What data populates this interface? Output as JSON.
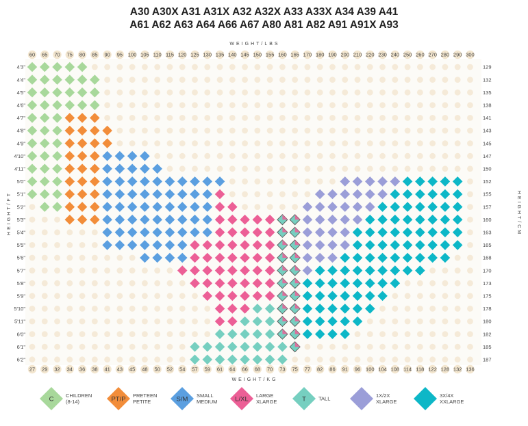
{
  "title": {
    "line1": "A30 A30X A31 A31X A32 A32X A33 A33X A34 A39 A41",
    "line2": "A61 A62 A63 A64 A66 A67 A80 A81 A82 A91 A91X A93"
  },
  "chart_data": {
    "type": "heatmap",
    "xlabel_top": "WEIGHT/LBS",
    "xlabel_bottom": "WEIGHT/KG",
    "ylabel_left": "HEIGHT/FT",
    "ylabel_right": "HEIGHT/CM",
    "lbs_ticks": [
      "60",
      "65",
      "70",
      "75",
      "80",
      "85",
      "90",
      "95",
      "100",
      "105",
      "110",
      "115",
      "120",
      "125",
      "130",
      "135",
      "140",
      "145",
      "150",
      "155",
      "160",
      "165",
      "170",
      "180",
      "190",
      "200",
      "210",
      "220",
      "230",
      "240",
      "250",
      "260",
      "270",
      "280",
      "290",
      "300"
    ],
    "kg_ticks": [
      "27",
      "29",
      "32",
      "34",
      "36",
      "38",
      "41",
      "43",
      "45",
      "48",
      "50",
      "52",
      "54",
      "57",
      "59",
      "61",
      "64",
      "66",
      "68",
      "70",
      "73",
      "75",
      "77",
      "82",
      "86",
      "91",
      "96",
      "100",
      "104",
      "108",
      "114",
      "118",
      "122",
      "128",
      "132",
      "136"
    ],
    "ft_ticks": [
      "4'3\"",
      "4'4\"",
      "4'5\"",
      "4'6\"",
      "4'7\"",
      "4'8\"",
      "4'9\"",
      "4'10\"",
      "4'11\"",
      "5'0\"",
      "5'1\"",
      "5'2\"",
      "5'3\"",
      "5'4\"",
      "5'5\"",
      "5'6\"",
      "5'7\"",
      "5'8\"",
      "5'9\"",
      "5'10\"",
      "5'11\"",
      "6'0\"",
      "6'1\"",
      "6'2\""
    ],
    "cm_ticks": [
      "129",
      "132",
      "135",
      "138",
      "141",
      "143",
      "145",
      "147",
      "150",
      "152",
      "155",
      "157",
      "160",
      "163",
      "165",
      "168",
      "170",
      "173",
      "175",
      "178",
      "180",
      "182",
      "185",
      "187"
    ],
    "colors": {
      "C": "#a8d89b",
      "PT": "#f28d3a",
      "SM": "#5b9fe0",
      "LXL": "#ec5f96",
      "T": "#76cfc0",
      "X1": "#9b9ed8",
      "X3": "#0db7c7",
      "dot": "#f5ead8",
      "plot_bg": "#fcfbf7"
    },
    "grid": [
      "CCCCC...............................",
      "CCCCCC..............................",
      "CCCCCC..............................",
      "CCCCCC..............................",
      "CCCPPP..............................",
      "CCCPPPP.............................",
      "CCCPPPP.............................",
      "CCCPPPSSSS..........................",
      "CCCPPPSSSSS.........................",
      "CCCPPPSSSSSSSSSS.........XXXXXZZZZZ.",
      "CCCPPPSSSSSSSSSL.......XXXXXXZZZZZZ.",
      ".CCPPPSSSSSSSSSLL.....XXXXXXZZZZZZZ.",
      "...PPPSSSSSSSSSLLLLLHHXXXXXZZZZZZZZ.",
      "......SSSSSSSSSLLLLLHHXXXXZZZZZZZZZ.",
      "......SSSSSSSLLLLLLLHHXXXXZZZZZZZZZ.",
      ".........SSSSLLLLLLLHHXXXZZZZZZZZZ..",
      "............LLLLLLLLHHXZZZZZZZZZ....",
      ".............LLLLLLLHHZZZZZZZZ......",
      "..............LLLLLLHHZZZZZZZ.......",
      "...............LLLTTHHZZZZZZ........",
      "...............LLTTTHHZZZZZ.........",
      "...............TTTTTHHZZZZ..........",
      ".............TTTTTTTTH..............",
      ".............TTTTTTTT..............."
    ],
    "legend": [
      {
        "code": "C",
        "line1": "CHILDREN",
        "line2": "(8-14)"
      },
      {
        "code": "PT/P",
        "line1": "PRETEEN",
        "line2": "PETITE"
      },
      {
        "code": "S/M",
        "line1": "SMALL",
        "line2": "MEDIUM"
      },
      {
        "code": "L/XL",
        "line1": "LARGE",
        "line2": "XLARGE"
      },
      {
        "code": "T",
        "line1": "TALL",
        "line2": ""
      },
      {
        "code": "1X/2X",
        "line1": "1X/2X",
        "line2": "XLARGE"
      },
      {
        "code": "3X/4X",
        "line1": "3X/4X",
        "line2": "XXLARGE"
      }
    ]
  }
}
